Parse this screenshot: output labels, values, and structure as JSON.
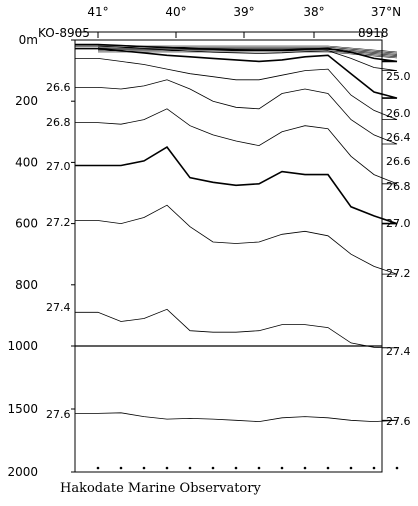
{
  "chart_data": {
    "type": "contour_section",
    "top_axis": {
      "labels": [
        "41°",
        "40°",
        "39°",
        "38°",
        "37°N"
      ],
      "start_station": "KO-8905",
      "end_station": "8918"
    },
    "y_axis": {
      "unit_label": "0m",
      "upper_ticks": [
        0,
        200,
        400,
        600,
        800,
        1000
      ],
      "lower_ticks": [
        1500,
        2000
      ],
      "ylim": [
        0,
        2000
      ]
    },
    "station_count": 14,
    "credit": "Hakodate Marine Observatory",
    "right_labels": [
      "25.0",
      "26.0",
      "26.4",
      "26.6",
      "26.8",
      "27.0",
      "27.2",
      "27.4",
      "27.6"
    ],
    "left_labels": [
      "26.6",
      "26.8",
      "27.0",
      "27.2",
      "27.4",
      "27.6"
    ],
    "isopycnals": [
      {
        "value": "25.0",
        "depth": [
          15,
          18,
          22,
          25,
          28,
          30,
          32,
          33,
          33,
          30,
          28,
          40,
          60,
          70
        ]
      },
      {
        "value": "25.5",
        "depth": [
          20,
          24,
          28,
          32,
          36,
          40,
          42,
          44,
          42,
          38,
          35,
          60,
          90,
          100
        ]
      },
      {
        "value": "26.0",
        "depth": [
          28,
          35,
          42,
          50,
          55,
          60,
          65,
          70,
          65,
          55,
          50,
          110,
          170,
          190
        ]
      },
      {
        "value": "26.4",
        "depth": [
          60,
          70,
          80,
          95,
          110,
          120,
          130,
          130,
          115,
          100,
          95,
          180,
          230,
          260
        ]
      },
      {
        "value": "26.6",
        "depth": [
          155,
          160,
          150,
          130,
          160,
          200,
          220,
          225,
          175,
          160,
          175,
          260,
          310,
          340
        ]
      },
      {
        "value": "26.8",
        "depth": [
          270,
          275,
          260,
          225,
          280,
          310,
          330,
          345,
          300,
          280,
          290,
          380,
          440,
          470
        ]
      },
      {
        "value": "27.0",
        "depth": [
          410,
          410,
          395,
          350,
          450,
          465,
          475,
          470,
          430,
          440,
          440,
          545,
          575,
          600
        ]
      },
      {
        "value": "27.2",
        "depth": [
          590,
          600,
          580,
          540,
          610,
          660,
          665,
          660,
          635,
          625,
          640,
          700,
          740,
          765
        ]
      },
      {
        "value": "27.4",
        "depth": [
          890,
          920,
          910,
          880,
          950,
          955,
          955,
          950,
          930,
          930,
          940,
          990,
          1010,
          1015
        ]
      },
      {
        "value": "27.6",
        "depth": [
          1535,
          1530,
          1560,
          1580,
          1575,
          1580,
          1590,
          1600,
          1570,
          1560,
          1570,
          1590,
          1600,
          1590
        ]
      }
    ]
  }
}
